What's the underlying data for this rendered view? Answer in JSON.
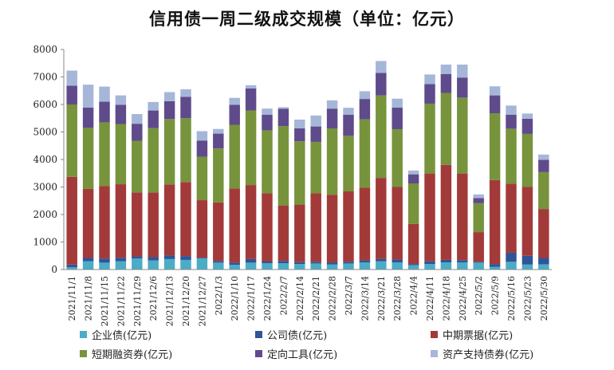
{
  "chart_data": {
    "type": "bar",
    "stacked": true,
    "title": "信用债一周二级成交规模（单位：亿元）",
    "xlabel": "",
    "ylabel": "",
    "ylim": [
      0,
      8000
    ],
    "yticks": [
      0,
      1000,
      2000,
      3000,
      4000,
      5000,
      6000,
      7000,
      8000
    ],
    "grid": false,
    "legend_position": "bottom",
    "categories": [
      "2021/11/1",
      "2021/11/8",
      "2021/11/15",
      "2021/11/22",
      "2021/11/29",
      "2021/12/6",
      "2021/12/13",
      "2021/12/20",
      "2021/12/27",
      "2022/1/3",
      "2022/1/10",
      "2022/1/17",
      "2022/1/24",
      "2022/2/7",
      "2022/2/14",
      "2022/2/21",
      "2022/2/28",
      "2022/3/7",
      "2022/3/14",
      "2022/3/21",
      "2022/3/28",
      "2022/4/4",
      "2022/4/11",
      "2022/4/18",
      "2022/4/25",
      "2022/5/2",
      "2022/5/9",
      "2022/5/16",
      "2022/5/23",
      "2022/5/30"
    ],
    "series": [
      {
        "name": "企业债(亿元)",
        "color": "#4bacc6",
        "values": [
          80,
          300,
          250,
          300,
          400,
          330,
          380,
          350,
          400,
          250,
          170,
          250,
          230,
          230,
          200,
          220,
          180,
          220,
          260,
          300,
          260,
          160,
          200,
          260,
          260,
          250,
          100,
          280,
          180,
          190
        ]
      },
      {
        "name": "公司债(亿元)",
        "color": "#2f5597",
        "values": [
          100,
          120,
          150,
          130,
          80,
          120,
          130,
          140,
          30,
          60,
          80,
          130,
          60,
          80,
          70,
          60,
          80,
          60,
          70,
          80,
          100,
          40,
          100,
          90,
          80,
          30,
          100,
          330,
          320,
          230
        ]
      },
      {
        "name": "中期票据(亿元)",
        "color": "#a33a3a",
        "values": [
          3190,
          2510,
          2630,
          2670,
          2320,
          2350,
          2580,
          2690,
          2090,
          2130,
          2690,
          2690,
          2480,
          2020,
          2090,
          2490,
          2460,
          2560,
          2640,
          2950,
          2640,
          1460,
          3190,
          3450,
          3150,
          1080,
          3050,
          2510,
          2500,
          1780
        ]
      },
      {
        "name": "短期融资券(亿元)",
        "color": "#77933c",
        "values": [
          2630,
          2220,
          2320,
          2190,
          1880,
          2340,
          2380,
          2320,
          1580,
          1960,
          2320,
          2710,
          2290,
          2880,
          2300,
          1870,
          2410,
          2020,
          2490,
          3000,
          2100,
          1470,
          2540,
          2620,
          2760,
          1050,
          2430,
          2000,
          1930,
          1340
        ]
      },
      {
        "name": "定向工具(亿元)",
        "color": "#5f4b8b",
        "values": [
          680,
          740,
          750,
          700,
          620,
          640,
          650,
          780,
          590,
          540,
          730,
          800,
          570,
          630,
          470,
          560,
          720,
          770,
          740,
          820,
          790,
          330,
          710,
          690,
          730,
          190,
          650,
          510,
          550,
          450
        ]
      },
      {
        "name": "资产支持债券(亿元)",
        "color": "#a6b6d9",
        "values": [
          550,
          830,
          550,
          340,
          350,
          310,
          330,
          270,
          340,
          170,
          250,
          120,
          220,
          60,
          320,
          400,
          300,
          250,
          280,
          430,
          320,
          140,
          350,
          340,
          470,
          130,
          330,
          330,
          190,
          190
        ]
      }
    ]
  }
}
